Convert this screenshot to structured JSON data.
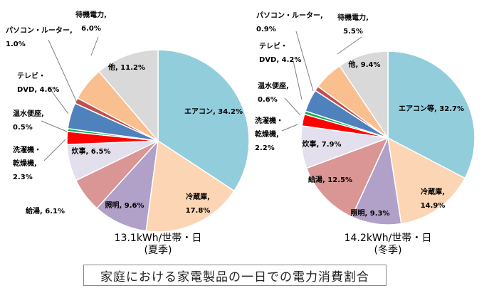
{
  "caption": "家庭における家電製品の一日での電力消費割合",
  "chart_data": [
    {
      "type": "pie",
      "subtitle_line1": "13.1kWh/世帯・日",
      "subtitle_line2": "(夏季)",
      "slices": [
        {
          "label": "エアコン",
          "value": 34.2,
          "text": "エアコン, 34.2%",
          "color": "#92cddc"
        },
        {
          "label": "冷蔵庫",
          "value": 17.8,
          "text": "冷蔵庫,|17.8%",
          "color": "#fcd5b4"
        },
        {
          "label": "照明",
          "value": 9.6,
          "text": "照明, 9.6%",
          "color": "#b1a0c7"
        },
        {
          "label": "給湯",
          "value": 6.1,
          "text": "給湯, 6.1%",
          "color": "#da9694"
        },
        {
          "label": "炊事",
          "value": 6.5,
          "text": "炊事, 6.5%",
          "color": "#e4dfec"
        },
        {
          "label": "洗濯機・乾燥機",
          "value": 2.3,
          "text": "洗濯機・|乾燥機,|2.3%",
          "color": "#ff0000"
        },
        {
          "label": "温水便座",
          "value": 0.5,
          "text": "温水便座,|0.5%",
          "color": "#00b050"
        },
        {
          "label": "テレビ・DVD",
          "value": 4.6,
          "text": "テレビ・|DVD, 4.6%",
          "color": "#4f81bd"
        },
        {
          "label": "パソコン・ルーター",
          "value": 1.0,
          "text": "パソコン・ルーター,|1.0%",
          "color": "#c0504d"
        },
        {
          "label": "待機電力",
          "value": 6.0,
          "text": "待機電力,|6.0%",
          "color": "#fabf8f"
        },
        {
          "label": "他",
          "value": 11.2,
          "text": "他, 11.2%",
          "color": "#d9d9d9"
        }
      ]
    },
    {
      "type": "pie",
      "subtitle_line1": "14.2kWh/世帯・日",
      "subtitle_line2": "(冬季)",
      "slices": [
        {
          "label": "エアコン等",
          "value": 32.7,
          "text": "エアコン等, 32.7%",
          "color": "#92cddc"
        },
        {
          "label": "冷蔵庫",
          "value": 14.9,
          "text": "冷蔵庫,|14.9%",
          "color": "#fcd5b4"
        },
        {
          "label": "照明",
          "value": 9.3,
          "text": "照明, 9.3%",
          "color": "#b1a0c7"
        },
        {
          "label": "給湯",
          "value": 12.5,
          "text": "給湯, 12.5%",
          "color": "#da9694"
        },
        {
          "label": "炊事",
          "value": 7.9,
          "text": "炊事, 7.9%",
          "color": "#e4dfec"
        },
        {
          "label": "洗濯機・乾燥機",
          "value": 2.2,
          "text": "洗濯機・|乾燥機,|2.2%",
          "color": "#ff0000"
        },
        {
          "label": "温水便座",
          "value": 0.6,
          "text": "温水便座,|0.6%",
          "color": "#00b050"
        },
        {
          "label": "テレビ・DVD",
          "value": 4.2,
          "text": "テレビ・|DVD, 4.2%",
          "color": "#4f81bd"
        },
        {
          "label": "パソコン・ルーター",
          "value": 0.9,
          "text": "パソコン・ルーター,|0.9%",
          "color": "#c0504d"
        },
        {
          "label": "待機電力",
          "value": 5.5,
          "text": "待機電力,|5.5%",
          "color": "#fabf8f"
        },
        {
          "label": "他",
          "value": 9.4,
          "text": "他, 9.4%",
          "color": "#d9d9d9"
        }
      ]
    }
  ]
}
